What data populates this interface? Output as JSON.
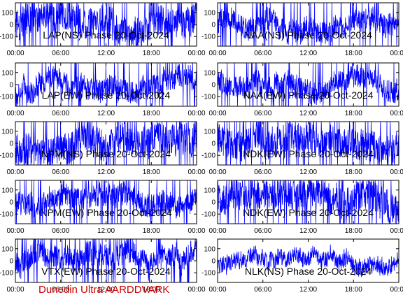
{
  "figure_footer": "Dunedin Ultra AARDDVARK",
  "colors": {
    "trace": "#0000ff",
    "frame": "#000000",
    "footer": "#cc0000",
    "background": "#ffffff"
  },
  "chart_data": [
    {
      "type": "line",
      "title": "LAP(NS) Phase  20-Oct-2024",
      "x_ticks": [
        "00:00",
        "06:00",
        "12:00",
        "18:00",
        "00:00"
      ],
      "y_ticks": [
        "100",
        "0",
        "-100"
      ],
      "xlim": [
        0,
        24
      ],
      "ylim": [
        -180,
        180
      ],
      "grid": false,
      "style": "dense",
      "series": [
        {
          "x": [],
          "y": []
        }
      ]
    },
    {
      "type": "line",
      "title": "NAA(NS) Phase  20-Oct-2024",
      "x_ticks": [
        "00:00",
        "06:00",
        "12:00",
        "18:00",
        "00:00"
      ],
      "y_ticks": [
        "100",
        "0",
        "-100"
      ],
      "xlim": [
        0,
        24
      ],
      "ylim": [
        -180,
        180
      ],
      "grid": false,
      "style": "moderate",
      "series": [
        {
          "x": [],
          "y": []
        }
      ]
    },
    {
      "type": "line",
      "title": "LAP(EW) Phase  20-Oct-2024",
      "x_ticks": [
        "00:00",
        "06:00",
        "12:00",
        "18:00",
        "00:00"
      ],
      "y_ticks": [
        "100",
        "0",
        "-100"
      ],
      "xlim": [
        0,
        24
      ],
      "ylim": [
        -180,
        180
      ],
      "grid": false,
      "style": "moderate",
      "series": [
        {
          "x": [],
          "y": []
        }
      ]
    },
    {
      "type": "line",
      "title": "NAA(EW) Phase  20-Oct-2024",
      "x_ticks": [
        "00:00",
        "06:00",
        "12:00",
        "18:00",
        "00:00"
      ],
      "y_ticks": [
        "100",
        "0",
        "-100"
      ],
      "xlim": [
        0,
        24
      ],
      "ylim": [
        -180,
        180
      ],
      "grid": false,
      "style": "moderate",
      "series": [
        {
          "x": [],
          "y": []
        }
      ]
    },
    {
      "type": "line",
      "title": "NPM(NS) Phase  20-Oct-2024",
      "x_ticks": [
        "00:00",
        "06:00",
        "12:00",
        "18:00",
        "00:00"
      ],
      "y_ticks": [
        "100",
        "0",
        "-100"
      ],
      "xlim": [
        0,
        24
      ],
      "ylim": [
        -180,
        180
      ],
      "grid": false,
      "style": "dense",
      "series": [
        {
          "x": [],
          "y": []
        }
      ]
    },
    {
      "type": "line",
      "title": "NDK(EW) Phase  20-Oct-2024",
      "x_ticks": [
        "00:00",
        "06:00",
        "12:00",
        "18:00",
        "00:00"
      ],
      "y_ticks": [
        "100",
        "0",
        "-100"
      ],
      "xlim": [
        0,
        24
      ],
      "ylim": [
        -180,
        180
      ],
      "grid": false,
      "style": "dense",
      "series": [
        {
          "x": [],
          "y": []
        }
      ]
    },
    {
      "type": "line",
      "title": "NPM(EW) Phase  20-Oct-2024",
      "x_ticks": [
        "00:00",
        "06:00",
        "12:00",
        "18:00",
        "00:00"
      ],
      "y_ticks": [
        "100",
        "0",
        "-100"
      ],
      "xlim": [
        0,
        24
      ],
      "ylim": [
        -180,
        180
      ],
      "grid": false,
      "style": "moderate",
      "series": [
        {
          "x": [],
          "y": []
        }
      ]
    },
    {
      "type": "line",
      "title": "NDK(EW) Phase  20-Oct-2024",
      "x_ticks": [
        "00:00",
        "06:00",
        "12:00",
        "18:00",
        "00:00"
      ],
      "y_ticks": [
        "100",
        "0",
        "-100"
      ],
      "xlim": [
        0,
        24
      ],
      "ylim": [
        -180,
        180
      ],
      "grid": false,
      "style": "dense",
      "series": [
        {
          "x": [],
          "y": []
        }
      ]
    },
    {
      "type": "line",
      "title": "VTX(EW) Phase  20-Oct-2024",
      "x_ticks": [
        "00:00",
        "06:00",
        "12:00",
        "18:00",
        "00:00"
      ],
      "y_ticks": [
        "100",
        "0",
        "-100"
      ],
      "xlim": [
        0,
        24
      ],
      "ylim": [
        -180,
        180
      ],
      "grid": false,
      "style": "moderate",
      "series": [
        {
          "x": [],
          "y": []
        }
      ]
    },
    {
      "type": "line",
      "title": "NLK(NS) Phase  20-Oct-2024",
      "x_ticks": [
        "00:00",
        "06:00",
        "12:00",
        "18:00",
        "00:00"
      ],
      "y_ticks": [
        "100",
        "0",
        "-100"
      ],
      "xlim": [
        0,
        24
      ],
      "ylim": [
        -180,
        180
      ],
      "grid": false,
      "style": "quiet",
      "series": [
        {
          "x": [],
          "y": []
        }
      ]
    }
  ]
}
